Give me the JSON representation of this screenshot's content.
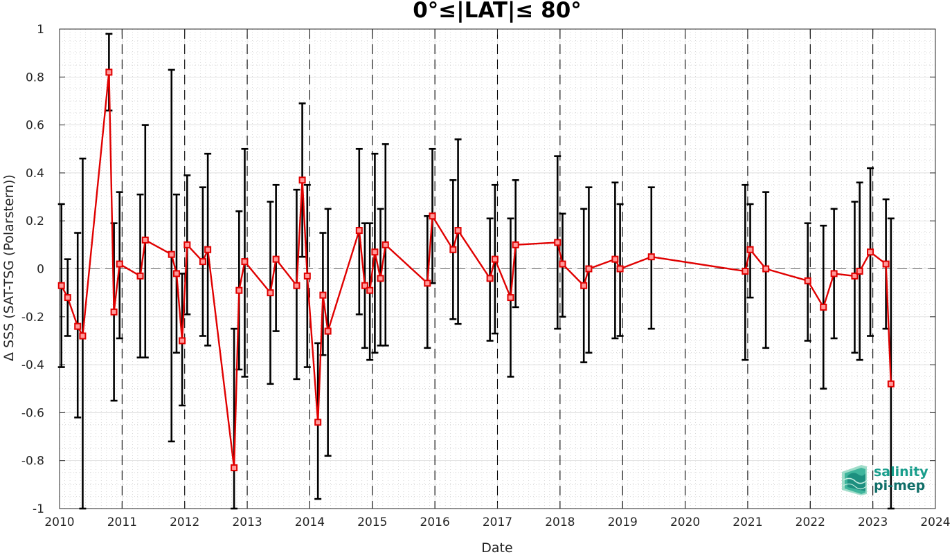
{
  "chart_data": {
    "type": "line",
    "title": "0°≤|LAT|≤ 80°",
    "xlabel": "Date",
    "ylabel": "Δ SSS (SAT-TSG (Polarstern))",
    "xlim": [
      2010,
      2024
    ],
    "ylim": [
      -1,
      1
    ],
    "xticks": [
      "2010",
      "2011",
      "2012",
      "2013",
      "2014",
      "2015",
      "2016",
      "2017",
      "2018",
      "2019",
      "2020",
      "2021",
      "2022",
      "2023",
      "2024"
    ],
    "yticks": [
      "-1",
      "-0.8",
      "-0.6",
      "-0.4",
      "-0.2",
      "0",
      "0.2",
      "0.4",
      "0.6",
      "0.8",
      "1"
    ],
    "grid": true,
    "zero_line": true,
    "year_dashed_lines": [
      2011,
      2012,
      2013,
      2014,
      2015,
      2016,
      2017,
      2018,
      2019,
      2020,
      2021,
      2022,
      2023
    ],
    "series_color": "#e00000",
    "errorbar_color": "#000000",
    "points": [
      {
        "x": 2010.03,
        "y": -0.07,
        "lo": -0.41,
        "hi": 0.27
      },
      {
        "x": 2010.13,
        "y": -0.12,
        "lo": -0.28,
        "hi": 0.04
      },
      {
        "x": 2010.29,
        "y": -0.24,
        "lo": -0.62,
        "hi": 0.15
      },
      {
        "x": 2010.37,
        "y": -0.28,
        "lo": -1.0,
        "hi": 0.46
      },
      {
        "x": 2010.79,
        "y": 0.82,
        "lo": 0.66,
        "hi": 0.98
      },
      {
        "x": 2010.87,
        "y": -0.18,
        "lo": -0.55,
        "hi": 0.19
      },
      {
        "x": 2010.96,
        "y": 0.02,
        "lo": -0.29,
        "hi": 0.32
      },
      {
        "x": 2011.29,
        "y": -0.03,
        "lo": -0.37,
        "hi": 0.31
      },
      {
        "x": 2011.37,
        "y": 0.12,
        "lo": -0.37,
        "hi": 0.6
      },
      {
        "x": 2011.79,
        "y": 0.06,
        "lo": -0.72,
        "hi": 0.83
      },
      {
        "x": 2011.87,
        "y": -0.02,
        "lo": -0.35,
        "hi": 0.31
      },
      {
        "x": 2011.96,
        "y": -0.3,
        "lo": -0.57,
        "hi": -0.02
      },
      {
        "x": 2012.04,
        "y": 0.1,
        "lo": -0.19,
        "hi": 0.39
      },
      {
        "x": 2012.29,
        "y": 0.03,
        "lo": -0.28,
        "hi": 0.34
      },
      {
        "x": 2012.37,
        "y": 0.08,
        "lo": -0.32,
        "hi": 0.48
      },
      {
        "x": 2012.79,
        "y": -0.83,
        "lo": -1.0,
        "hi": -0.25
      },
      {
        "x": 2012.87,
        "y": -0.09,
        "lo": -0.42,
        "hi": 0.24
      },
      {
        "x": 2012.96,
        "y": 0.03,
        "lo": -0.45,
        "hi": 0.5
      },
      {
        "x": 2013.37,
        "y": -0.1,
        "lo": -0.48,
        "hi": 0.28
      },
      {
        "x": 2013.46,
        "y": 0.04,
        "lo": -0.26,
        "hi": 0.35
      },
      {
        "x": 2013.79,
        "y": -0.07,
        "lo": -0.46,
        "hi": 0.33
      },
      {
        "x": 2013.88,
        "y": 0.37,
        "lo": 0.05,
        "hi": 0.69
      },
      {
        "x": 2013.96,
        "y": -0.03,
        "lo": -0.41,
        "hi": 0.35
      },
      {
        "x": 2014.13,
        "y": -0.64,
        "lo": -0.96,
        "hi": -0.31
      },
      {
        "x": 2014.21,
        "y": -0.11,
        "lo": -0.36,
        "hi": 0.15
      },
      {
        "x": 2014.29,
        "y": -0.26,
        "lo": -0.78,
        "hi": 0.25
      },
      {
        "x": 2014.79,
        "y": 0.16,
        "lo": -0.19,
        "hi": 0.5
      },
      {
        "x": 2014.88,
        "y": -0.07,
        "lo": -0.33,
        "hi": 0.19
      },
      {
        "x": 2014.96,
        "y": -0.09,
        "lo": -0.38,
        "hi": 0.19
      },
      {
        "x": 2015.04,
        "y": 0.07,
        "lo": -0.35,
        "hi": 0.48
      },
      {
        "x": 2015.13,
        "y": -0.04,
        "lo": -0.32,
        "hi": 0.25
      },
      {
        "x": 2015.21,
        "y": 0.1,
        "lo": -0.32,
        "hi": 0.52
      },
      {
        "x": 2015.88,
        "y": -0.06,
        "lo": -0.33,
        "hi": 0.22
      },
      {
        "x": 2015.96,
        "y": 0.22,
        "lo": -0.06,
        "hi": 0.5
      },
      {
        "x": 2016.29,
        "y": 0.08,
        "lo": -0.21,
        "hi": 0.37
      },
      {
        "x": 2016.37,
        "y": 0.16,
        "lo": -0.23,
        "hi": 0.54
      },
      {
        "x": 2016.88,
        "y": -0.04,
        "lo": -0.3,
        "hi": 0.21
      },
      {
        "x": 2016.96,
        "y": 0.04,
        "lo": -0.27,
        "hi": 0.35
      },
      {
        "x": 2017.21,
        "y": -0.12,
        "lo": -0.45,
        "hi": 0.21
      },
      {
        "x": 2017.29,
        "y": 0.1,
        "lo": -0.16,
        "hi": 0.37
      },
      {
        "x": 2017.96,
        "y": 0.11,
        "lo": -0.25,
        "hi": 0.47
      },
      {
        "x": 2018.04,
        "y": 0.02,
        "lo": -0.2,
        "hi": 0.23
      },
      {
        "x": 2018.38,
        "y": -0.07,
        "lo": -0.39,
        "hi": 0.25
      },
      {
        "x": 2018.46,
        "y": 0.0,
        "lo": -0.35,
        "hi": 0.34
      },
      {
        "x": 2018.88,
        "y": 0.04,
        "lo": -0.29,
        "hi": 0.36
      },
      {
        "x": 2018.96,
        "y": 0.0,
        "lo": -0.28,
        "hi": 0.27
      },
      {
        "x": 2019.46,
        "y": 0.05,
        "lo": -0.25,
        "hi": 0.34
      },
      {
        "x": 2020.96,
        "y": -0.01,
        "lo": -0.38,
        "hi": 0.35
      },
      {
        "x": 2021.04,
        "y": 0.08,
        "lo": -0.12,
        "hi": 0.27
      },
      {
        "x": 2021.29,
        "y": 0.0,
        "lo": -0.33,
        "hi": 0.32
      },
      {
        "x": 2021.96,
        "y": -0.05,
        "lo": -0.3,
        "hi": 0.19
      },
      {
        "x": 2022.21,
        "y": -0.16,
        "lo": -0.5,
        "hi": 0.18
      },
      {
        "x": 2022.38,
        "y": -0.02,
        "lo": -0.29,
        "hi": 0.25
      },
      {
        "x": 2022.71,
        "y": -0.03,
        "lo": -0.35,
        "hi": 0.28
      },
      {
        "x": 2022.79,
        "y": -0.01,
        "lo": -0.38,
        "hi": 0.36
      },
      {
        "x": 2022.96,
        "y": 0.07,
        "lo": -0.28,
        "hi": 0.42
      },
      {
        "x": 2023.21,
        "y": 0.02,
        "lo": -0.25,
        "hi": 0.29
      },
      {
        "x": 2023.29,
        "y": -0.48,
        "lo": -1.0,
        "hi": 0.21
      }
    ]
  },
  "logo": {
    "line1": "salinity",
    "line2": "pi-mep",
    "color": "#1a9e8c",
    "color_dark": "#0f6e68"
  }
}
